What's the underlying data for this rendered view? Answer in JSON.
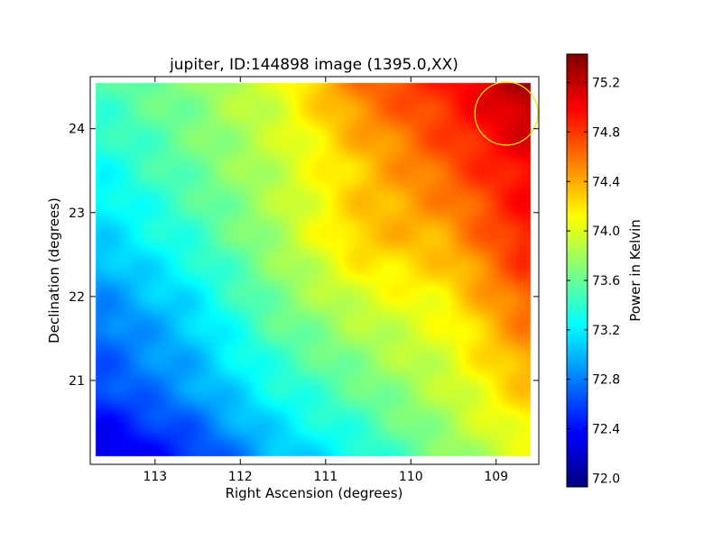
{
  "chart_data": {
    "type": "heatmap",
    "title": "jupiter, ID:144898 image (1395.0,XX)",
    "xlabel": "Right Ascension (degrees)",
    "ylabel": "Declination (degrees)",
    "xlim": [
      113.76,
      108.5
    ],
    "ylim": [
      20.0,
      24.62
    ],
    "xticks": [
      113,
      112,
      111,
      110,
      109
    ],
    "yticks": [
      21,
      22,
      23,
      24
    ],
    "grid": false,
    "data_extent": {
      "ra": [
        113.7,
        108.6
      ],
      "dec": [
        24.55,
        20.1
      ]
    },
    "grid_ra": [
      113.6,
      112.6,
      111.6,
      110.6,
      109.6,
      108.7
    ],
    "grid_dec": [
      24.5,
      23.6,
      22.7,
      21.8,
      20.9,
      20.1
    ],
    "values": [
      [
        73.5,
        73.7,
        74.0,
        74.6,
        74.9,
        75.3
      ],
      [
        73.3,
        73.6,
        73.9,
        74.3,
        74.7,
        75.0
      ],
      [
        73.1,
        73.4,
        73.8,
        74.3,
        74.4,
        74.9
      ],
      [
        72.8,
        73.1,
        73.6,
        73.9,
        74.1,
        74.6
      ],
      [
        72.6,
        72.9,
        73.3,
        73.6,
        73.9,
        74.3
      ],
      [
        72.2,
        72.5,
        73.0,
        73.3,
        73.7,
        74.0
      ]
    ],
    "marker_circle": {
      "ra": 108.88,
      "dec": 24.18,
      "radius_deg": 0.37,
      "color": "#e8e800"
    },
    "colorbar": {
      "label": "Power in Kelvin",
      "range": [
        71.93,
        75.43
      ],
      "ticks": [
        "72.0",
        "72.4",
        "72.8",
        "73.2",
        "73.6",
        "74.0",
        "74.4",
        "74.8",
        "75.2"
      ],
      "colormap": "jet"
    }
  }
}
